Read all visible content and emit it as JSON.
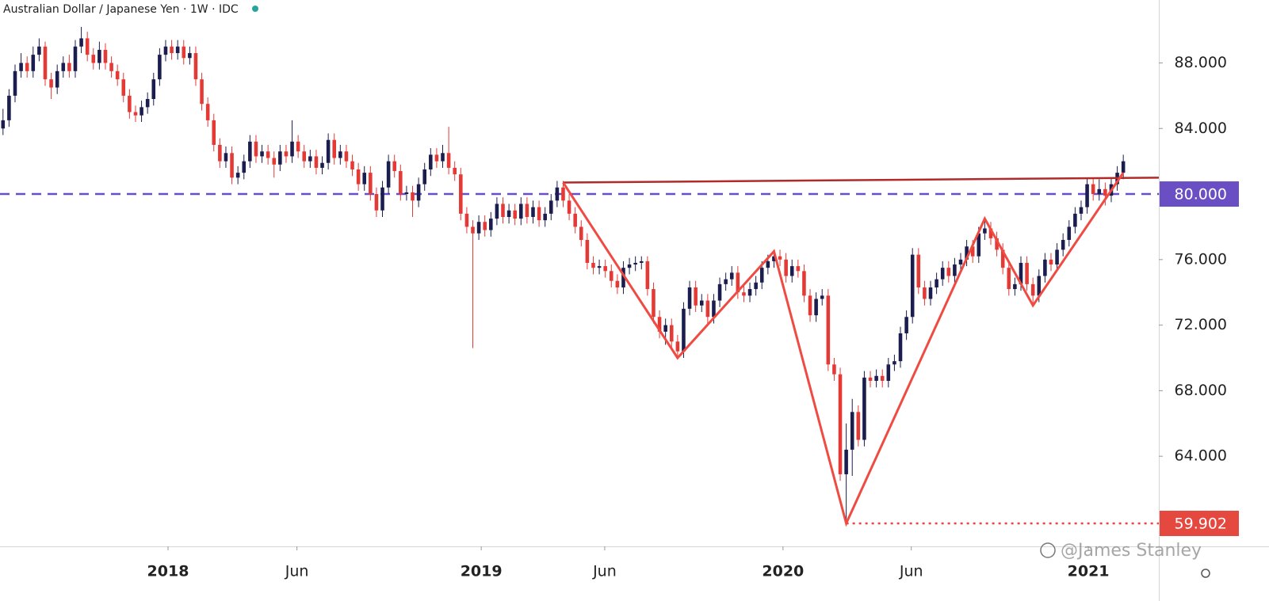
{
  "chart_data": {
    "type": "candlestick",
    "title": "Australian Dollar / Japanese Yen · 1W · IDC",
    "watermark": "@James Stanley",
    "up_color": "#1b1d4e",
    "down_color": "#e53935",
    "xlim": [
      -0.5,
      191.9
    ],
    "ylim": [
      58.5,
      91.84
    ],
    "yticks": [
      {
        "value": 64,
        "label": "64.000"
      },
      {
        "value": 68,
        "label": "68.000"
      },
      {
        "value": 72,
        "label": "72.000"
      },
      {
        "value": 76,
        "label": "76.000"
      },
      {
        "value": 80,
        "label": "80.000"
      },
      {
        "value": 84,
        "label": "84.000"
      },
      {
        "value": 88,
        "label": "88.000"
      }
    ],
    "xticks": [
      {
        "value": 27.4,
        "label": "2018"
      },
      {
        "value": 48.8,
        "label": "Jun"
      },
      {
        "value": 79.4,
        "label": "2019"
      },
      {
        "value": 99.9,
        "label": "Jun"
      },
      {
        "value": 129.5,
        "label": "2020"
      },
      {
        "value": 150.8,
        "label": "Jun"
      },
      {
        "value": 180.2,
        "label": "2021"
      }
    ],
    "levels": [
      {
        "value": 80,
        "label": "80.000",
        "color": "#6a4fc4",
        "style": "dashed",
        "from_x": -0.5
      },
      {
        "value": 59.902,
        "label": "59.902",
        "color": "#e5483f",
        "style": "dotted",
        "from_x": 140
      }
    ],
    "neckline": {
      "color": "#b02a2a",
      "x": [
        93,
        191.9
      ],
      "y": [
        80.7,
        81.0
      ]
    },
    "zigzag": {
      "color": "#ef4b42",
      "x": [
        93,
        112,
        128,
        140,
        163,
        171,
        186
      ],
      "y": [
        80.7,
        70.0,
        76.5,
        59.902,
        78.5,
        73.2,
        81.3
      ]
    },
    "candles": [
      [
        84.0,
        85.2,
        83.6,
        84.5
      ],
      [
        84.5,
        86.4,
        84.1,
        86.0
      ],
      [
        86.0,
        87.9,
        85.6,
        87.5
      ],
      [
        87.5,
        88.6,
        87.1,
        88.0
      ],
      [
        88.0,
        88.4,
        87.1,
        87.5
      ],
      [
        87.5,
        89.0,
        87.1,
        88.5
      ],
      [
        88.5,
        89.5,
        88.1,
        89.0
      ],
      [
        89.0,
        89.3,
        86.6,
        87.0
      ],
      [
        87.0,
        87.4,
        85.8,
        86.5
      ],
      [
        86.5,
        87.9,
        86.1,
        87.5
      ],
      [
        87.5,
        88.4,
        87.1,
        88.0
      ],
      [
        88.0,
        88.5,
        87.1,
        87.5
      ],
      [
        87.5,
        89.4,
        87.1,
        89.0
      ],
      [
        89.0,
        90.2,
        88.6,
        89.5
      ],
      [
        89.5,
        89.9,
        88.1,
        88.5
      ],
      [
        88.5,
        88.9,
        87.6,
        88.0
      ],
      [
        88.0,
        89.3,
        87.6,
        88.8
      ],
      [
        88.8,
        89.2,
        87.6,
        88.0
      ],
      [
        88.0,
        88.4,
        87.1,
        87.5
      ],
      [
        87.5,
        87.9,
        86.6,
        87.0
      ],
      [
        87.0,
        87.4,
        85.6,
        86.0
      ],
      [
        86.0,
        86.4,
        84.6,
        85.0
      ],
      [
        85.0,
        85.4,
        84.4,
        84.8
      ],
      [
        84.8,
        85.7,
        84.4,
        85.3
      ],
      [
        85.3,
        86.2,
        84.9,
        85.8
      ],
      [
        85.8,
        87.4,
        85.4,
        87.0
      ],
      [
        87.0,
        88.9,
        86.6,
        88.5
      ],
      [
        88.5,
        89.4,
        88.1,
        89.0
      ],
      [
        89.0,
        89.4,
        88.2,
        88.6
      ],
      [
        88.6,
        89.4,
        88.2,
        89.0
      ],
      [
        89.0,
        89.4,
        87.9,
        88.3
      ],
      [
        88.3,
        89.0,
        87.9,
        88.6
      ],
      [
        88.6,
        89.0,
        86.6,
        87.0
      ],
      [
        87.0,
        87.4,
        85.1,
        85.5
      ],
      [
        85.5,
        85.9,
        84.1,
        84.5
      ],
      [
        84.5,
        84.9,
        82.6,
        83.0
      ],
      [
        83.0,
        83.4,
        81.6,
        82.0
      ],
      [
        82.0,
        82.9,
        81.6,
        82.5
      ],
      [
        82.5,
        82.9,
        80.6,
        81.0
      ],
      [
        81.0,
        81.7,
        80.6,
        81.3
      ],
      [
        81.3,
        82.4,
        80.9,
        82.0
      ],
      [
        82.0,
        83.6,
        81.6,
        83.2
      ],
      [
        83.2,
        83.6,
        81.9,
        82.3
      ],
      [
        82.3,
        83.0,
        81.9,
        82.6
      ],
      [
        82.6,
        83.0,
        81.8,
        82.2
      ],
      [
        82.2,
        82.6,
        81.0,
        81.8
      ],
      [
        81.8,
        83.0,
        81.4,
        82.6
      ],
      [
        82.6,
        83.0,
        81.9,
        82.3
      ],
      [
        82.3,
        84.5,
        81.9,
        83.2
      ],
      [
        83.2,
        83.6,
        82.2,
        82.6
      ],
      [
        82.6,
        83.0,
        81.6,
        82.0
      ],
      [
        82.0,
        82.7,
        81.6,
        82.3
      ],
      [
        82.3,
        82.7,
        81.2,
        81.6
      ],
      [
        81.6,
        82.3,
        81.2,
        81.9
      ],
      [
        81.9,
        83.7,
        81.5,
        83.3
      ],
      [
        83.3,
        83.7,
        81.8,
        82.2
      ],
      [
        82.2,
        83.0,
        81.8,
        82.6
      ],
      [
        82.6,
        83.0,
        81.6,
        82.0
      ],
      [
        82.0,
        82.4,
        81.1,
        81.5
      ],
      [
        81.5,
        81.9,
        80.2,
        80.6
      ],
      [
        80.6,
        81.7,
        80.2,
        81.3
      ],
      [
        81.3,
        81.7,
        79.6,
        80.0
      ],
      [
        80.0,
        80.4,
        78.6,
        79.0
      ],
      [
        79.0,
        80.8,
        78.6,
        80.4
      ],
      [
        80.4,
        82.4,
        80.0,
        82.0
      ],
      [
        82.0,
        82.4,
        81.0,
        81.4
      ],
      [
        81.4,
        81.8,
        79.6,
        80.0
      ],
      [
        80.0,
        80.5,
        79.6,
        80.1
      ],
      [
        80.1,
        80.5,
        78.6,
        79.6
      ],
      [
        79.6,
        81.0,
        79.2,
        80.6
      ],
      [
        80.6,
        81.9,
        80.2,
        81.5
      ],
      [
        81.5,
        82.8,
        81.1,
        82.4
      ],
      [
        82.4,
        82.8,
        81.6,
        82.0
      ],
      [
        82.0,
        83.0,
        81.6,
        82.5
      ],
      [
        82.5,
        84.1,
        81.2,
        81.6
      ],
      [
        81.6,
        82.0,
        80.8,
        81.2
      ],
      [
        81.2,
        81.6,
        78.4,
        78.8
      ],
      [
        78.8,
        79.2,
        77.6,
        78.0
      ],
      [
        78.0,
        78.4,
        70.6,
        77.6
      ],
      [
        77.6,
        78.7,
        77.2,
        78.3
      ],
      [
        78.3,
        78.7,
        77.4,
        77.8
      ],
      [
        77.8,
        78.9,
        77.4,
        78.5
      ],
      [
        78.5,
        79.8,
        78.1,
        79.4
      ],
      [
        79.4,
        79.8,
        78.2,
        78.6
      ],
      [
        78.6,
        79.4,
        78.2,
        79.0
      ],
      [
        79.0,
        79.4,
        78.1,
        78.5
      ],
      [
        78.5,
        79.8,
        78.1,
        79.4
      ],
      [
        79.4,
        79.8,
        78.2,
        78.6
      ],
      [
        78.6,
        79.6,
        78.2,
        79.2
      ],
      [
        79.2,
        79.6,
        78.0,
        78.4
      ],
      [
        78.4,
        79.2,
        78.0,
        78.8
      ],
      [
        78.8,
        80.0,
        78.4,
        79.6
      ],
      [
        79.6,
        80.8,
        79.2,
        80.4
      ],
      [
        80.4,
        80.8,
        79.2,
        79.6
      ],
      [
        79.6,
        80.0,
        78.4,
        78.8
      ],
      [
        78.8,
        79.2,
        77.6,
        78.0
      ],
      [
        78.0,
        78.4,
        76.8,
        77.2
      ],
      [
        77.2,
        77.6,
        75.4,
        75.8
      ],
      [
        75.8,
        76.2,
        75.1,
        75.5
      ],
      [
        75.5,
        76.0,
        75.1,
        75.6
      ],
      [
        75.6,
        76.0,
        74.9,
        75.3
      ],
      [
        75.3,
        75.7,
        74.3,
        74.7
      ],
      [
        74.7,
        75.1,
        73.9,
        74.3
      ],
      [
        74.3,
        75.9,
        73.9,
        75.5
      ],
      [
        75.5,
        76.1,
        75.1,
        75.7
      ],
      [
        75.7,
        76.2,
        75.3,
        75.8
      ],
      [
        75.8,
        76.2,
        75.4,
        75.9
      ],
      [
        75.9,
        76.2,
        73.8,
        74.2
      ],
      [
        74.2,
        74.6,
        72.1,
        72.5
      ],
      [
        72.5,
        72.9,
        71.2,
        71.6
      ],
      [
        71.6,
        72.4,
        70.8,
        72.0
      ],
      [
        72.0,
        72.4,
        70.6,
        71.0
      ],
      [
        71.0,
        71.4,
        70.0,
        70.4
      ],
      [
        70.4,
        73.4,
        70.0,
        73.0
      ],
      [
        73.0,
        74.7,
        72.6,
        74.3
      ],
      [
        74.3,
        74.7,
        72.8,
        73.2
      ],
      [
        73.2,
        73.9,
        72.8,
        73.5
      ],
      [
        73.5,
        73.9,
        72.1,
        72.5
      ],
      [
        72.5,
        73.9,
        72.1,
        73.5
      ],
      [
        73.5,
        74.9,
        73.1,
        74.5
      ],
      [
        74.5,
        75.2,
        74.1,
        74.8
      ],
      [
        74.8,
        75.6,
        74.4,
        75.2
      ],
      [
        75.2,
        75.6,
        73.6,
        74.0
      ],
      [
        74.0,
        74.4,
        73.4,
        73.8
      ],
      [
        73.8,
        74.6,
        73.4,
        74.2
      ],
      [
        74.2,
        75.0,
        73.8,
        74.6
      ],
      [
        74.6,
        75.9,
        74.2,
        75.5
      ],
      [
        75.5,
        76.3,
        75.1,
        75.9
      ],
      [
        75.9,
        76.6,
        75.5,
        76.2
      ],
      [
        76.2,
        76.6,
        75.6,
        76.0
      ],
      [
        76.0,
        76.4,
        74.6,
        75.0
      ],
      [
        75.0,
        76.0,
        74.6,
        75.6
      ],
      [
        75.6,
        76.0,
        74.9,
        75.3
      ],
      [
        75.3,
        75.7,
        73.4,
        73.8
      ],
      [
        73.8,
        74.2,
        72.2,
        72.6
      ],
      [
        72.6,
        74.0,
        72.2,
        73.6
      ],
      [
        73.6,
        74.2,
        73.2,
        73.8
      ],
      [
        73.8,
        74.2,
        69.2,
        69.6
      ],
      [
        69.6,
        70.0,
        68.6,
        69.0
      ],
      [
        69.0,
        69.4,
        62.5,
        62.9
      ],
      [
        62.9,
        66.0,
        59.902,
        64.4
      ],
      [
        64.4,
        67.5,
        62.8,
        66.7
      ],
      [
        66.7,
        67.1,
        64.6,
        65.0
      ],
      [
        65.0,
        69.2,
        64.6,
        68.8
      ],
      [
        68.8,
        69.2,
        68.2,
        68.6
      ],
      [
        68.6,
        69.3,
        68.2,
        68.9
      ],
      [
        68.9,
        69.3,
        68.2,
        68.6
      ],
      [
        68.6,
        70.0,
        68.2,
        69.6
      ],
      [
        69.6,
        70.2,
        69.2,
        69.8
      ],
      [
        69.8,
        71.9,
        69.4,
        71.5
      ],
      [
        71.5,
        72.9,
        71.1,
        72.5
      ],
      [
        72.5,
        76.7,
        72.1,
        76.3
      ],
      [
        76.3,
        76.7,
        73.9,
        74.3
      ],
      [
        74.3,
        74.7,
        73.2,
        73.6
      ],
      [
        73.6,
        74.7,
        73.2,
        74.3
      ],
      [
        74.3,
        75.2,
        73.9,
        74.8
      ],
      [
        74.8,
        75.9,
        74.4,
        75.5
      ],
      [
        75.5,
        75.9,
        74.6,
        75.0
      ],
      [
        75.0,
        76.1,
        74.6,
        75.7
      ],
      [
        75.7,
        76.4,
        75.3,
        76.0
      ],
      [
        76.0,
        77.2,
        75.6,
        76.8
      ],
      [
        76.8,
        77.2,
        75.8,
        76.2
      ],
      [
        76.2,
        78.0,
        75.8,
        77.6
      ],
      [
        77.6,
        78.6,
        77.2,
        77.9
      ],
      [
        77.9,
        78.3,
        76.9,
        77.3
      ],
      [
        77.3,
        77.7,
        76.2,
        76.6
      ],
      [
        76.6,
        77.0,
        75.1,
        75.5
      ],
      [
        75.5,
        75.9,
        73.8,
        74.2
      ],
      [
        74.2,
        74.9,
        73.8,
        74.5
      ],
      [
        74.5,
        76.2,
        74.1,
        75.8
      ],
      [
        75.8,
        76.2,
        74.1,
        74.5
      ],
      [
        74.5,
        74.9,
        73.2,
        73.8
      ],
      [
        73.8,
        75.4,
        73.4,
        75.0
      ],
      [
        75.0,
        76.4,
        74.6,
        76.0
      ],
      [
        76.0,
        76.4,
        75.3,
        75.7
      ],
      [
        75.7,
        77.0,
        75.3,
        76.6
      ],
      [
        76.6,
        77.6,
        76.2,
        77.2
      ],
      [
        77.2,
        78.4,
        76.8,
        78.0
      ],
      [
        78.0,
        79.2,
        77.6,
        78.8
      ],
      [
        78.8,
        79.6,
        78.4,
        79.2
      ],
      [
        79.2,
        81.0,
        78.8,
        80.6
      ],
      [
        80.6,
        81.0,
        79.6,
        80.0
      ],
      [
        80.0,
        80.9,
        79.6,
        80.3
      ],
      [
        80.3,
        80.7,
        79.3,
        79.9
      ],
      [
        79.9,
        81.0,
        79.5,
        80.6
      ],
      [
        80.6,
        81.7,
        80.2,
        81.3
      ],
      [
        81.3,
        82.4,
        80.9,
        82.0
      ]
    ]
  }
}
